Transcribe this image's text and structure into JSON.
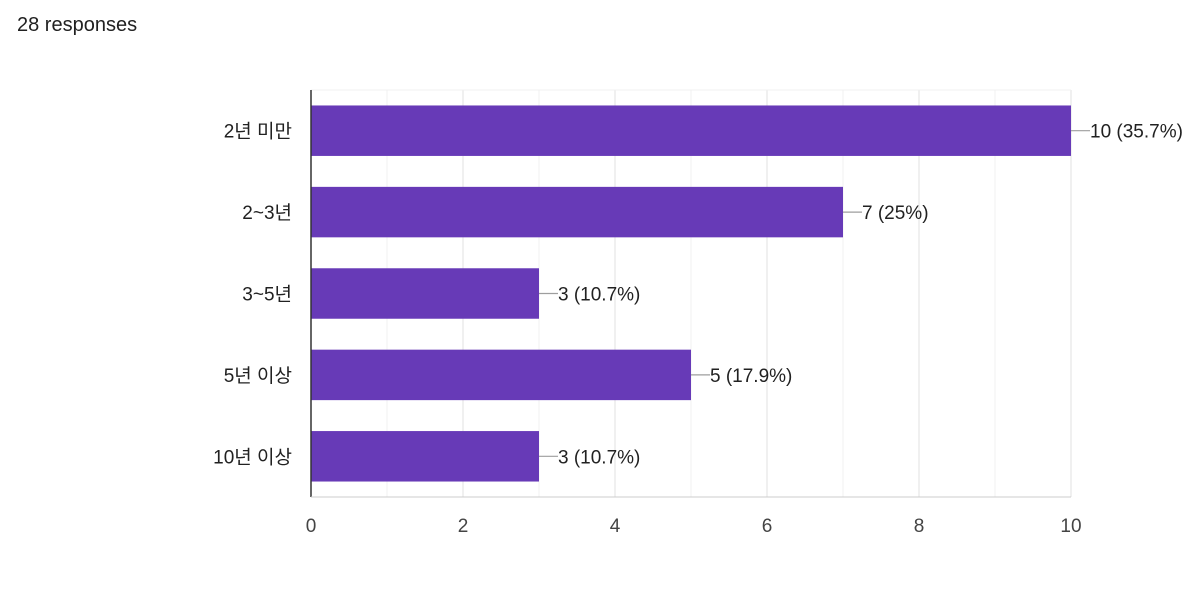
{
  "header": {
    "responses": "28 responses"
  },
  "chart_data": {
    "type": "bar",
    "orientation": "horizontal",
    "categories": [
      "2년 미만",
      "2~3년",
      "3~5년",
      "5년 이상",
      "10년 이상"
    ],
    "values": [
      10,
      7,
      3,
      5,
      3
    ],
    "data_labels": [
      "10 (35.7%)",
      "7 (25%)",
      "3 (10.7%)",
      "5 (17.9%)",
      "3 (10.7%)"
    ],
    "xlim": [
      0,
      10
    ],
    "xticks": [
      0,
      2,
      4,
      6,
      8,
      10
    ],
    "grid": true,
    "bar_color": "#673ab7"
  }
}
